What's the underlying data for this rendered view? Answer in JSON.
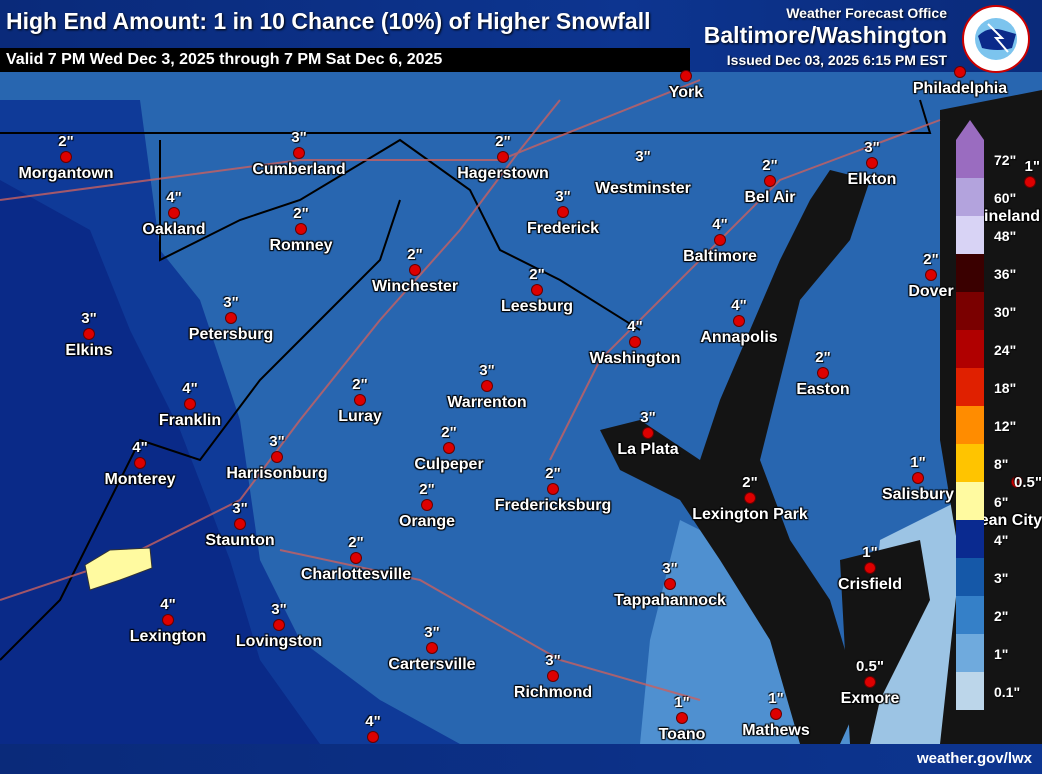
{
  "header": {
    "title": "High End Amount: 1 in 10 Chance (10%) of Higher Snowfall",
    "valid": "Valid 7 PM Wed Dec 3, 2025 through 7 PM Sat Dec 6, 2025",
    "wfo": "Weather Forecast Office",
    "office": "Baltimore/Washington",
    "issued": "Issued Dec 03, 2025 6:15 PM EST",
    "logo_text": "NATIONAL WEATHER SERVICE"
  },
  "cities": [
    {
      "name": "Morgantown",
      "amount": "2\""
    },
    {
      "name": "Cumberland",
      "amount": "3\""
    },
    {
      "name": "Hagerstown",
      "amount": "2\""
    },
    {
      "name": "Westminster",
      "amount": "3\""
    },
    {
      "name": "Bel Air",
      "amount": "2\""
    },
    {
      "name": "Elkton",
      "amount": "3\""
    },
    {
      "name": "Oakland",
      "amount": "4\""
    },
    {
      "name": "Romney",
      "amount": "2\""
    },
    {
      "name": "Frederick",
      "amount": "3\""
    },
    {
      "name": "Baltimore",
      "amount": "4\""
    },
    {
      "name": "Winchester",
      "amount": "2\""
    },
    {
      "name": "Leesburg",
      "amount": "2\""
    },
    {
      "name": "Dover",
      "amount": "2\""
    },
    {
      "name": "Vineland",
      "amount": "1\""
    },
    {
      "name": "York",
      "amount": ""
    },
    {
      "name": "Philadelphia",
      "amount": ""
    },
    {
      "name": "Petersburg",
      "amount": "3\""
    },
    {
      "name": "Elkins",
      "amount": "3\""
    },
    {
      "name": "Annapolis",
      "amount": "4\""
    },
    {
      "name": "Washington",
      "amount": "4\""
    },
    {
      "name": "Easton",
      "amount": "2\""
    },
    {
      "name": "Luray",
      "amount": "2\""
    },
    {
      "name": "Warrenton",
      "amount": "3\""
    },
    {
      "name": "Franklin",
      "amount": "4\""
    },
    {
      "name": "Monterey",
      "amount": "4\""
    },
    {
      "name": "Harrisonburg",
      "amount": "3\""
    },
    {
      "name": "Culpeper",
      "amount": "2\""
    },
    {
      "name": "La Plata",
      "amount": "3\""
    },
    {
      "name": "Salisbury",
      "amount": "1\""
    },
    {
      "name": "Ocean City",
      "amount": "0.5\""
    },
    {
      "name": "Orange",
      "amount": "2\""
    },
    {
      "name": "Fredericksburg",
      "amount": "2\""
    },
    {
      "name": "Lexington Park",
      "amount": "2\""
    },
    {
      "name": "Staunton",
      "amount": "3\""
    },
    {
      "name": "Charlottesville",
      "amount": "2\""
    },
    {
      "name": "Crisfield",
      "amount": "1\""
    },
    {
      "name": "Tappahannock",
      "amount": "3\""
    },
    {
      "name": "Lexington",
      "amount": "4\""
    },
    {
      "name": "Lovingston",
      "amount": "3\""
    },
    {
      "name": "Cartersville",
      "amount": "3\""
    },
    {
      "name": "Richmond",
      "amount": "3\""
    },
    {
      "name": "Exmore",
      "amount": "0.5\""
    },
    {
      "name": "Toano",
      "amount": "1\""
    },
    {
      "name": "Mathews",
      "amount": "1\""
    },
    {
      "name": "",
      "amount": "4\""
    }
  ],
  "legend": [
    {
      "label": "72\"",
      "color": "#9a6cc0"
    },
    {
      "label": "60\"",
      "color": "#b3a3dd"
    },
    {
      "label": "48\"",
      "color": "#d8d3f5"
    },
    {
      "label": "36\"",
      "color": "#3a0000"
    },
    {
      "label": "30\"",
      "color": "#7a0000"
    },
    {
      "label": "24\"",
      "color": "#b00000"
    },
    {
      "label": "18\"",
      "color": "#e02000"
    },
    {
      "label": "12\"",
      "color": "#ff8c00"
    },
    {
      "label": "8\"",
      "color": "#ffc400"
    },
    {
      "label": "6\"",
      "color": "#fffaa0"
    },
    {
      "label": "4\"",
      "color": "#0a2a90"
    },
    {
      "label": "3\"",
      "color": "#1558a8"
    },
    {
      "label": "2\"",
      "color": "#3580c8"
    },
    {
      "label": "1\"",
      "color": "#6faadd"
    },
    {
      "label": "0.1\"",
      "color": "#bcd6ea"
    }
  ],
  "footer": {
    "url": "weather.gov/lwx"
  }
}
